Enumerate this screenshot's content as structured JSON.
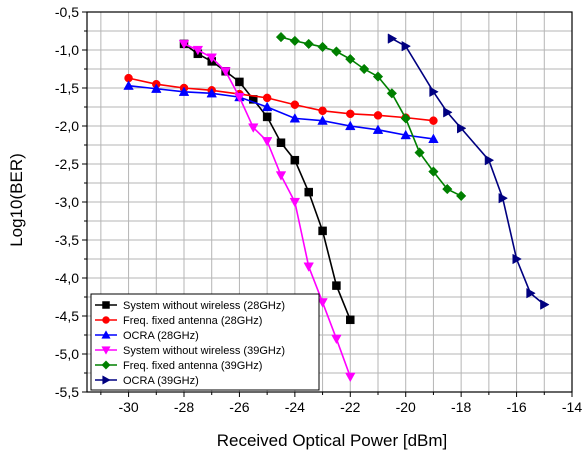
{
  "chart_data": {
    "type": "line",
    "title": "",
    "xlabel": "Received Optical Power [dBm]",
    "ylabel": "Log10(BER)",
    "xlim": [
      -31.5,
      -14
    ],
    "ylim": [
      -5.5,
      -0.5
    ],
    "xticks": [
      -30,
      -28,
      -26,
      -24,
      -22,
      -20,
      -18,
      -16,
      -14
    ],
    "xtick_labels": [
      "-30",
      "-28",
      "-26",
      "-24",
      "-22",
      "-20",
      "-18",
      "-16",
      "-14"
    ],
    "yticks": [
      -0.5,
      -1.0,
      -1.5,
      -2.0,
      -2.5,
      -3.0,
      -3.5,
      -4.0,
      -4.5,
      -5.0,
      -5.5
    ],
    "ytick_labels": [
      "-0,5",
      "-1,0",
      "-1,5",
      "-2,0",
      "-2,5",
      "-3,0",
      "-3,5",
      "-4,0",
      "-4,5",
      "-5,0",
      "-5,5"
    ],
    "grid": true,
    "legend_position": "bottom-left",
    "series": [
      {
        "name": "System without wireless (28GHz)",
        "color": "#000000",
        "marker": "square",
        "x": [
          -28,
          -27.5,
          -27,
          -26.5,
          -26,
          -25.5,
          -25,
          -24.5,
          -24,
          -23.5,
          -23,
          -22.5,
          -22
        ],
        "y": [
          -0.92,
          -1.05,
          -1.15,
          -1.28,
          -1.42,
          -1.65,
          -1.88,
          -2.22,
          -2.45,
          -2.87,
          -3.38,
          -4.1,
          -4.55
        ]
      },
      {
        "name": "Freq. fixed antenna (28GHz)",
        "color": "#ff0000",
        "marker": "circle",
        "x": [
          -30,
          -29,
          -28,
          -27,
          -26,
          -25,
          -24,
          -23,
          -22,
          -21,
          -20,
          -19
        ],
        "y": [
          -1.37,
          -1.45,
          -1.5,
          -1.53,
          -1.58,
          -1.63,
          -1.72,
          -1.8,
          -1.84,
          -1.86,
          -1.89,
          -1.93
        ]
      },
      {
        "name": "OCRA (28GHz)",
        "color": "#0000ff",
        "marker": "triangle-up",
        "x": [
          -30,
          -29,
          -28,
          -27,
          -26,
          -25,
          -24,
          -23,
          -22,
          -21,
          -20,
          -19
        ],
        "y": [
          -1.47,
          -1.51,
          -1.55,
          -1.57,
          -1.62,
          -1.75,
          -1.9,
          -1.93,
          -2.0,
          -2.05,
          -2.12,
          -2.17
        ]
      },
      {
        "name": "System without wireless (39GHz)",
        "color": "#ff00ff",
        "marker": "triangle-down",
        "x": [
          -28,
          -27.5,
          -27,
          -26.5,
          -26,
          -25.5,
          -25,
          -24.5,
          -24,
          -23.5,
          -23,
          -22.5,
          -22
        ],
        "y": [
          -0.92,
          -1.0,
          -1.1,
          -1.28,
          -1.62,
          -2.02,
          -2.2,
          -2.65,
          -3.0,
          -3.85,
          -4.32,
          -4.8,
          -5.3
        ]
      },
      {
        "name": "Freq. fixed antenna (39GHz)",
        "color": "#008000",
        "marker": "diamond",
        "x": [
          -24.5,
          -24,
          -23.5,
          -23,
          -22.5,
          -22,
          -21.5,
          -21,
          -20.5,
          -20,
          -19.5,
          -19,
          -18.5,
          -18
        ],
        "y": [
          -0.83,
          -0.88,
          -0.92,
          -0.96,
          -1.02,
          -1.12,
          -1.25,
          -1.35,
          -1.57,
          -1.9,
          -2.35,
          -2.6,
          -2.83,
          -2.92
        ]
      },
      {
        "name": "OCRA (39GHz)",
        "color": "#000080",
        "marker": "triangle-right",
        "x": [
          -20.5,
          -20,
          -19,
          -18.5,
          -18,
          -17,
          -16.5,
          -16,
          -15.5,
          -15
        ],
        "y": [
          -0.85,
          -0.95,
          -1.55,
          -1.82,
          -2.03,
          -2.45,
          -2.95,
          -3.75,
          -4.2,
          -4.35
        ]
      }
    ]
  }
}
